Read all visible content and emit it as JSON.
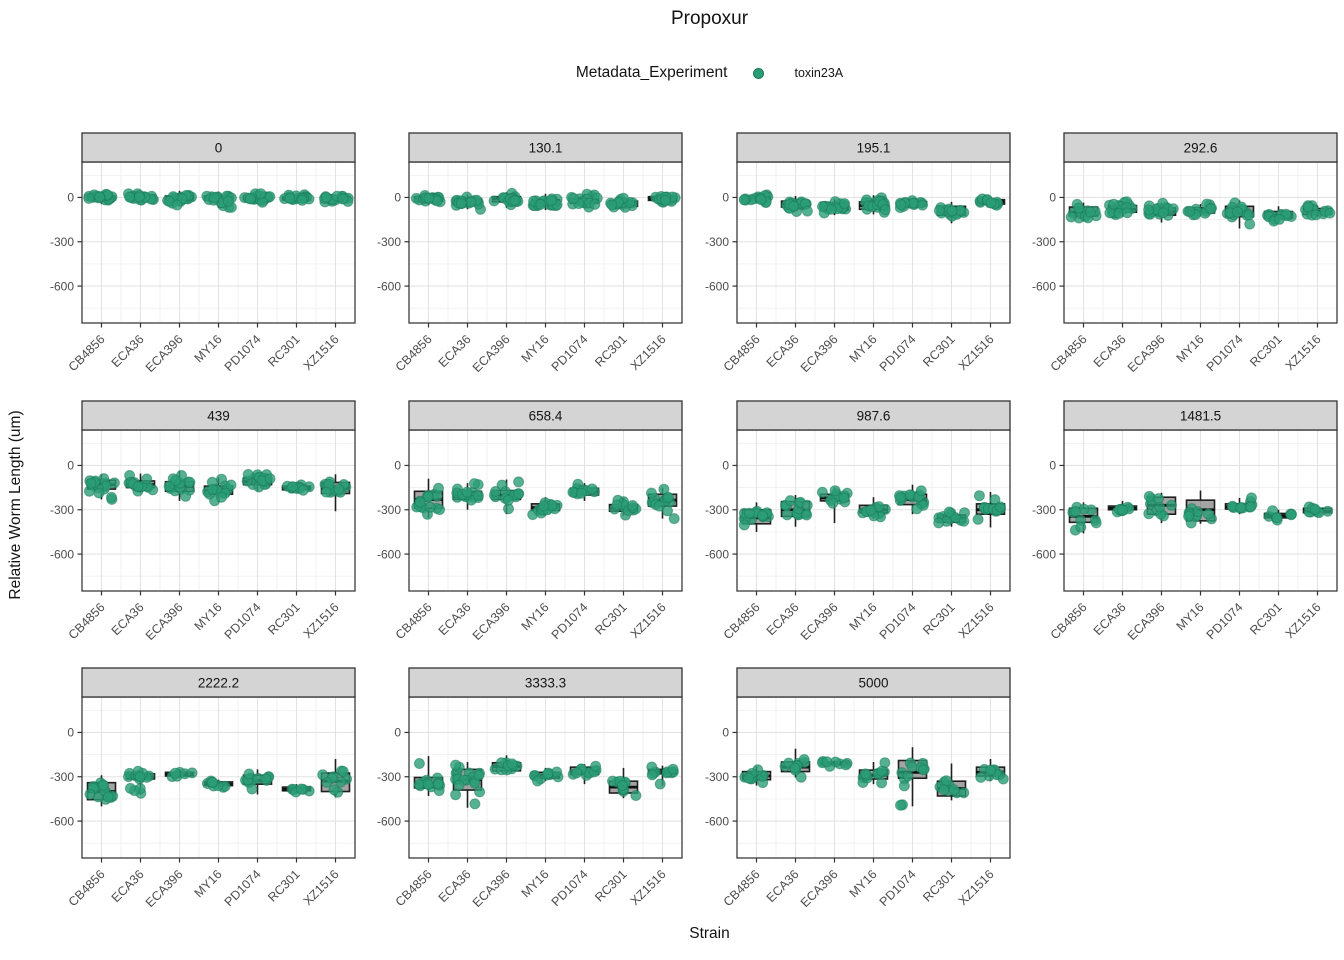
{
  "title": "Propoxur",
  "legend": {
    "title": "Metadata_Experiment",
    "items": [
      {
        "label": "toxin23A",
        "color": "#2a9d77"
      }
    ]
  },
  "axes": {
    "x_title": "Strain",
    "y_title": "Relative Worm Length (um)",
    "y_tick_labels": [
      "0",
      "-300",
      "-600"
    ]
  },
  "colors": {
    "point": "#2a9d77",
    "point_stroke": "#1b7a5b",
    "box_fill": "#595959",
    "box_stroke": "#1f1f1f",
    "strip_fill": "#d4d4d4",
    "strip_stroke": "#333333",
    "panel_border": "#3c3c3c",
    "grid_major": "#e3e3e3",
    "grid_minor": "#f0f0f0",
    "axis_text": "#4d4d4d",
    "tick_mark": "#333333"
  },
  "chart_data": {
    "type": "boxplot-jitter",
    "x_categories": [
      "CB4856",
      "ECA36",
      "ECA396",
      "MY16",
      "PD1074",
      "RC301",
      "XZ1516"
    ],
    "ylim": [
      -850,
      240
    ],
    "y_major_ticks": [
      0,
      -300,
      -600
    ],
    "y_minor_ticks": [
      150,
      -150,
      -450,
      -750
    ],
    "facet_grid": {
      "columns": 4,
      "rows": 3
    },
    "stats_format": [
      "median",
      "q1",
      "q3",
      "whisker_low",
      "whisker_high",
      "n_points"
    ],
    "facets": [
      {
        "label": "0",
        "stats": [
          [
            0,
            -15,
            10,
            -45,
            30,
            20
          ],
          [
            0,
            -12,
            10,
            -35,
            25,
            20
          ],
          [
            -5,
            -20,
            10,
            -60,
            45,
            22
          ],
          [
            -5,
            -20,
            10,
            -70,
            40,
            22
          ],
          [
            -5,
            -15,
            8,
            -40,
            30,
            22
          ],
          [
            -8,
            -18,
            5,
            -35,
            25,
            20
          ],
          [
            -3,
            -12,
            8,
            -30,
            20,
            18
          ]
        ]
      },
      {
        "label": "130.1",
        "stats": [
          [
            -10,
            -25,
            5,
            -50,
            25,
            18
          ],
          [
            -30,
            -45,
            -10,
            -80,
            20,
            20
          ],
          [
            -10,
            -30,
            5,
            -70,
            35,
            20
          ],
          [
            -35,
            -55,
            -15,
            -85,
            25,
            20
          ],
          [
            -25,
            -40,
            -8,
            -65,
            25,
            18
          ],
          [
            -45,
            -60,
            -25,
            -85,
            -5,
            16
          ],
          [
            -8,
            -20,
            5,
            -35,
            25,
            16
          ]
        ]
      },
      {
        "label": "195.1",
        "stats": [
          [
            -5,
            -15,
            5,
            -40,
            30,
            16
          ],
          [
            -45,
            -65,
            -25,
            -95,
            10,
            20
          ],
          [
            -60,
            -85,
            -35,
            -120,
            -10,
            18
          ],
          [
            -55,
            -80,
            -30,
            -115,
            15,
            20
          ],
          [
            -40,
            -55,
            -28,
            -70,
            -10,
            14
          ],
          [
            -95,
            -120,
            -60,
            -175,
            -30,
            16
          ],
          [
            -30,
            -45,
            -15,
            -60,
            0,
            12
          ]
        ]
      },
      {
        "label": "292.6",
        "stats": [
          [
            -100,
            -125,
            -65,
            -160,
            -35,
            14
          ],
          [
            -80,
            -100,
            -55,
            -130,
            -25,
            16
          ],
          [
            -95,
            -120,
            -70,
            -170,
            -35,
            16
          ],
          [
            -90,
            -105,
            -70,
            -125,
            -45,
            12
          ],
          [
            -105,
            -130,
            -60,
            -210,
            -20,
            14
          ],
          [
            -120,
            -140,
            -95,
            -170,
            -60,
            12
          ],
          [
            -95,
            -115,
            -75,
            -135,
            -55,
            14
          ]
        ]
      },
      {
        "label": "439",
        "stats": [
          [
            -130,
            -160,
            -100,
            -230,
            -60,
            16
          ],
          [
            -130,
            -150,
            -105,
            -185,
            -55,
            16
          ],
          [
            -145,
            -175,
            -110,
            -240,
            -35,
            16
          ],
          [
            -170,
            -195,
            -140,
            -250,
            -80,
            16
          ],
          [
            -110,
            -130,
            -85,
            -175,
            -45,
            16
          ],
          [
            -155,
            -165,
            -140,
            -185,
            -120,
            12
          ],
          [
            -155,
            -190,
            -115,
            -310,
            -60,
            14
          ]
        ]
      },
      {
        "label": "658.4",
        "stats": [
          [
            -230,
            -290,
            -175,
            -355,
            -90,
            16
          ],
          [
            -205,
            -230,
            -175,
            -300,
            -120,
            16
          ],
          [
            -200,
            -230,
            -170,
            -330,
            -95,
            16
          ],
          [
            -285,
            -305,
            -260,
            -340,
            -215,
            14
          ],
          [
            -180,
            -200,
            -155,
            -240,
            -120,
            12
          ],
          [
            -290,
            -310,
            -265,
            -340,
            -220,
            12
          ],
          [
            -235,
            -275,
            -195,
            -360,
            -150,
            14
          ]
        ]
      },
      {
        "label": "987.6",
        "stats": [
          [
            -355,
            -395,
            -300,
            -450,
            -250,
            14
          ],
          [
            -300,
            -345,
            -245,
            -415,
            -200,
            14
          ],
          [
            -220,
            -240,
            -195,
            -390,
            -150,
            12
          ],
          [
            -300,
            -320,
            -270,
            -360,
            -215,
            12
          ],
          [
            -230,
            -265,
            -195,
            -330,
            -130,
            16
          ],
          [
            -360,
            -385,
            -335,
            -415,
            -290,
            12
          ],
          [
            -300,
            -330,
            -260,
            -420,
            -180,
            12
          ]
        ]
      },
      {
        "label": "1481.5",
        "stats": [
          [
            -345,
            -385,
            -290,
            -460,
            -250,
            10
          ],
          [
            -290,
            -300,
            -275,
            -320,
            -240,
            10
          ],
          [
            -270,
            -330,
            -215,
            -390,
            -185,
            10
          ],
          [
            -300,
            -375,
            -235,
            -395,
            -170,
            10
          ],
          [
            -280,
            -295,
            -260,
            -330,
            -220,
            12
          ],
          [
            -340,
            -355,
            -325,
            -380,
            -300,
            8
          ],
          [
            -310,
            -320,
            -290,
            -330,
            -270,
            8
          ]
        ]
      },
      {
        "label": "2222.2",
        "stats": [
          [
            -400,
            -455,
            -340,
            -500,
            -290,
            14
          ],
          [
            -300,
            -315,
            -280,
            -420,
            -255,
            14
          ],
          [
            -285,
            -295,
            -270,
            -310,
            -250,
            6
          ],
          [
            -350,
            -360,
            -335,
            -375,
            -320,
            8
          ],
          [
            -325,
            -350,
            -290,
            -420,
            -250,
            14
          ],
          [
            -385,
            -395,
            -370,
            -410,
            -350,
            6
          ],
          [
            -330,
            -400,
            -275,
            -440,
            -180,
            10
          ]
        ]
      },
      {
        "label": "3333.3",
        "stats": [
          [
            -345,
            -375,
            -305,
            -430,
            -160,
            14
          ],
          [
            -320,
            -390,
            -250,
            -510,
            -200,
            18
          ],
          [
            -230,
            -260,
            -205,
            -280,
            -155,
            10
          ],
          [
            -290,
            -310,
            -270,
            -330,
            -240,
            10
          ],
          [
            -265,
            -285,
            -235,
            -350,
            -215,
            10
          ],
          [
            -370,
            -410,
            -330,
            -445,
            -240,
            10
          ],
          [
            -265,
            -280,
            -250,
            -360,
            -225,
            10
          ]
        ]
      },
      {
        "label": "5000",
        "stats": [
          [
            -295,
            -320,
            -265,
            -360,
            -230,
            10
          ],
          [
            -235,
            -265,
            -200,
            -305,
            -110,
            10
          ],
          [
            -210,
            -218,
            -200,
            -230,
            -190,
            8
          ],
          [
            -290,
            -315,
            -255,
            -350,
            -200,
            12
          ],
          [
            -270,
            -310,
            -190,
            -500,
            -100,
            12
          ],
          [
            -380,
            -430,
            -330,
            -460,
            -210,
            10
          ],
          [
            -270,
            -295,
            -235,
            -330,
            -180,
            10
          ]
        ]
      }
    ]
  }
}
